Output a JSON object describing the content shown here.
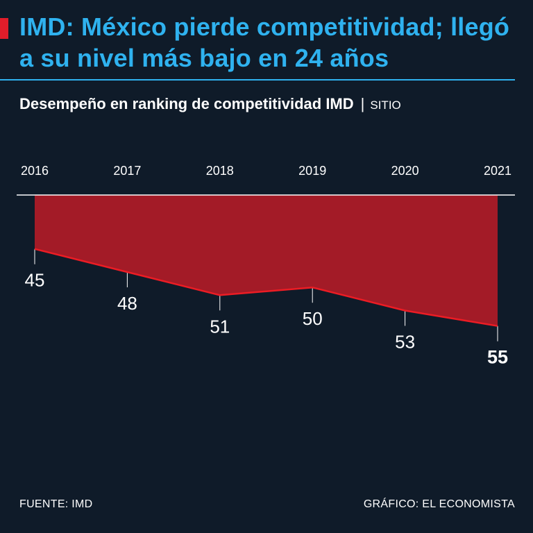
{
  "header": {
    "title": "IMD: México pierde competitividad; llegó a su nivel más bajo en 24 años",
    "subtitle": "Desempeño en ranking de competitividad IMD",
    "subtitle_separator": "|",
    "subtitle_unit": "SITIO"
  },
  "chart_data": {
    "type": "area",
    "title": "Desempeño en ranking de competitividad IMD",
    "ylabel": "SITIO",
    "x": [
      "2016",
      "2017",
      "2018",
      "2019",
      "2020",
      "2021"
    ],
    "values": [
      45,
      48,
      51,
      50,
      53,
      55
    ],
    "data_labels": [
      "45",
      "48",
      "51",
      "50",
      "53",
      "55"
    ],
    "highlight_index": 5,
    "ylim": [
      38,
      56
    ],
    "y_inverted": true,
    "x_axis_position": "top",
    "colors": {
      "area": "#a31b27",
      "line": "#ec1c24",
      "axis": "#ffffff",
      "text": "#ffffff"
    }
  },
  "footer": {
    "source": "FUENTE: IMD",
    "credit": "GRÁFICO: EL ECONOMISTA"
  },
  "colors": {
    "background": "#0f1b29",
    "accent": "#2fb2ef",
    "brand_red": "#e11d2a"
  }
}
